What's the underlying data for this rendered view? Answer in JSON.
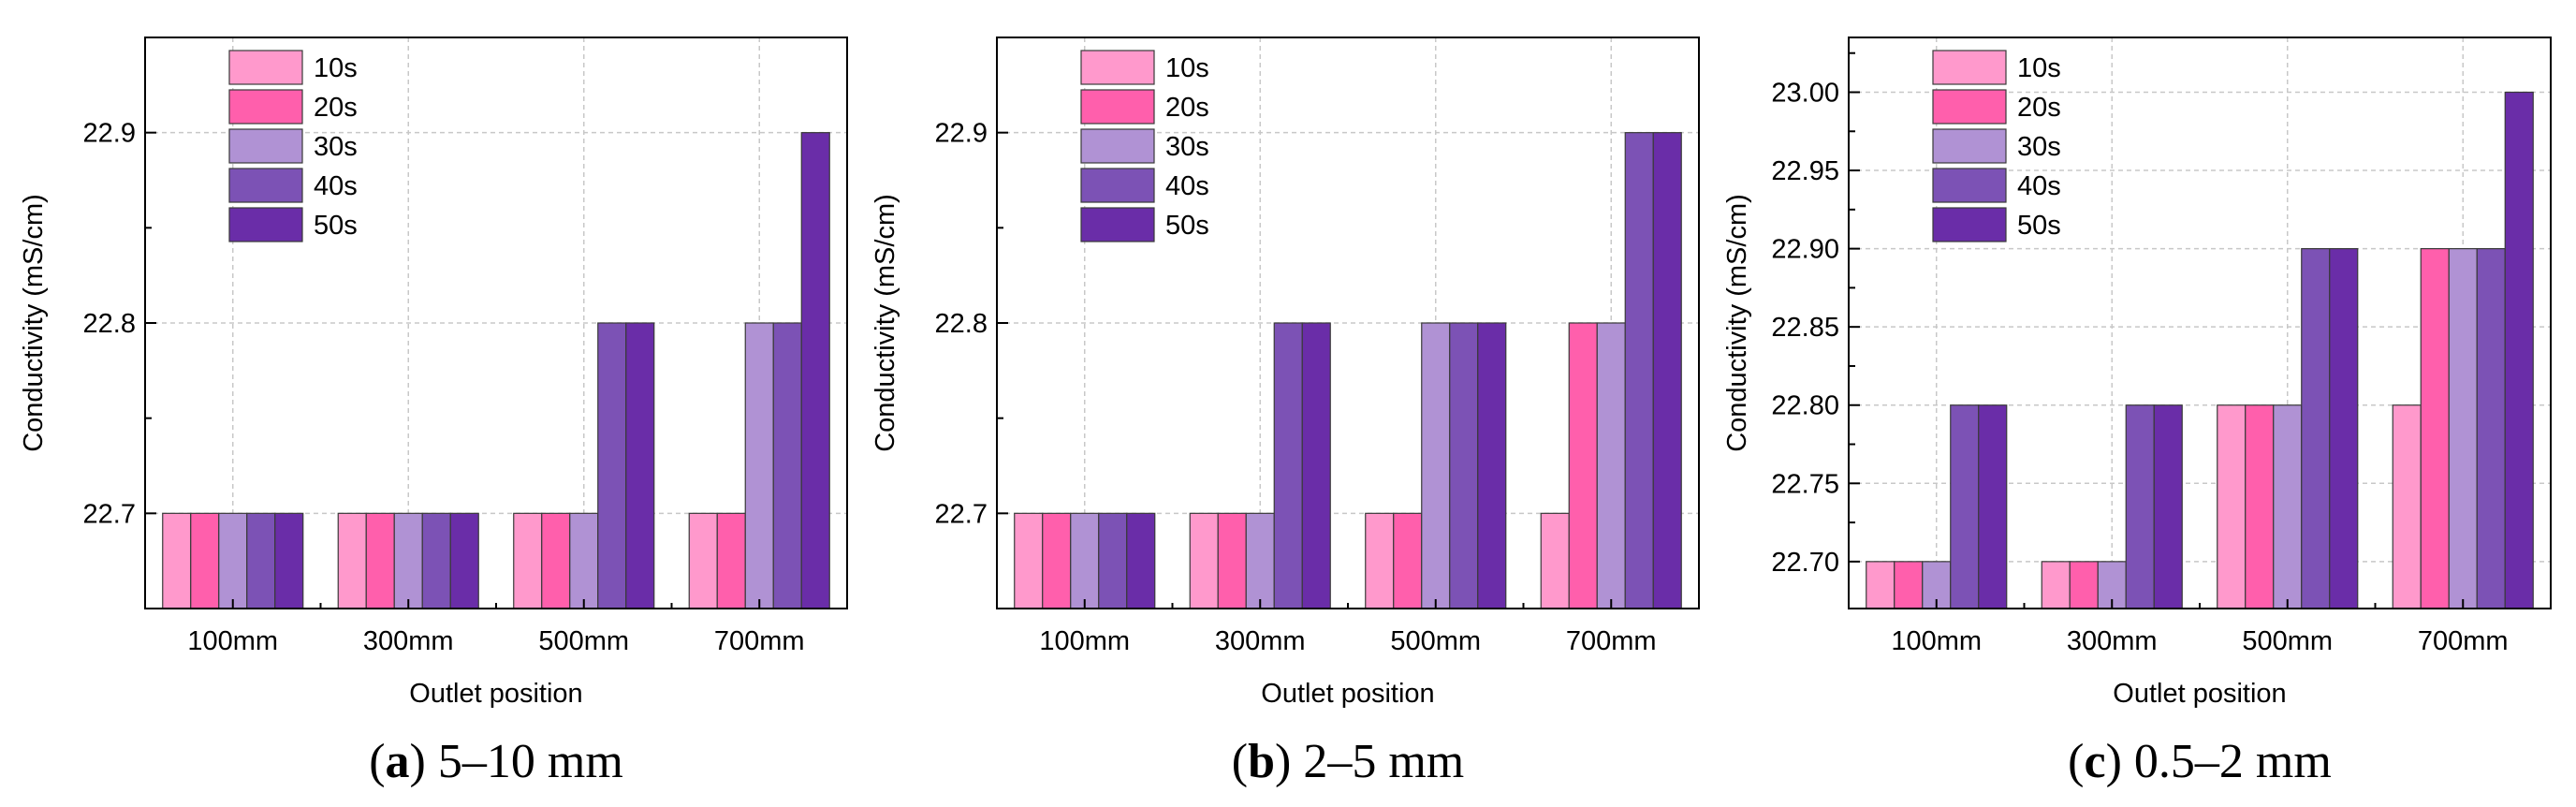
{
  "series_colors": [
    "#ff99cc",
    "#ff5fac",
    "#b092d4",
    "#7c52b5",
    "#6a2da8"
  ],
  "chart_data": [
    {
      "type": "bar",
      "panel": "a",
      "caption_letter": "a",
      "caption_text": " 5–10 mm",
      "caption_paren_open": "(",
      "caption_paren_close": ")",
      "categories": [
        "100mm",
        "300mm",
        "500mm",
        "700mm"
      ],
      "series": [
        {
          "name": "10s",
          "values": [
            22.7,
            22.7,
            22.7,
            22.7
          ]
        },
        {
          "name": "20s",
          "values": [
            22.7,
            22.7,
            22.7,
            22.7
          ]
        },
        {
          "name": "30s",
          "values": [
            22.7,
            22.7,
            22.7,
            22.8
          ]
        },
        {
          "name": "40s",
          "values": [
            22.7,
            22.7,
            22.8,
            22.8
          ]
        },
        {
          "name": "50s",
          "values": [
            22.7,
            22.7,
            22.8,
            22.9
          ]
        }
      ],
      "xlabel": "Outlet position",
      "ylabel": "Conductivity (mS/cm)",
      "ylim": [
        22.65,
        22.95
      ],
      "yticks": [
        22.7,
        22.8,
        22.9
      ],
      "ytick_labels": [
        "22.7",
        "22.8",
        "22.9"
      ],
      "yminor": [
        22.65,
        22.75,
        22.85,
        22.95
      ],
      "grid": true,
      "legend": "top-left"
    },
    {
      "type": "bar",
      "panel": "b",
      "caption_letter": "b",
      "caption_text": " 2–5 mm",
      "caption_paren_open": "(",
      "caption_paren_close": ")",
      "categories": [
        "100mm",
        "300mm",
        "500mm",
        "700mm"
      ],
      "series": [
        {
          "name": "10s",
          "values": [
            22.7,
            22.7,
            22.7,
            22.7
          ]
        },
        {
          "name": "20s",
          "values": [
            22.7,
            22.7,
            22.7,
            22.8
          ]
        },
        {
          "name": "30s",
          "values": [
            22.7,
            22.7,
            22.8,
            22.8
          ]
        },
        {
          "name": "40s",
          "values": [
            22.7,
            22.8,
            22.8,
            22.9
          ]
        },
        {
          "name": "50s",
          "values": [
            22.7,
            22.8,
            22.8,
            22.9
          ]
        }
      ],
      "xlabel": "Outlet position",
      "ylabel": "Conductivity (mS/cm)",
      "ylim": [
        22.65,
        22.95
      ],
      "yticks": [
        22.7,
        22.8,
        22.9
      ],
      "ytick_labels": [
        "22.7",
        "22.8",
        "22.9"
      ],
      "yminor": [
        22.65,
        22.75,
        22.85,
        22.95
      ],
      "grid": true,
      "legend": "top-left"
    },
    {
      "type": "bar",
      "panel": "c",
      "caption_letter": "c",
      "caption_text": " 0.5–2 mm",
      "caption_paren_open": "(",
      "caption_paren_close": ")",
      "categories": [
        "100mm",
        "300mm",
        "500mm",
        "700mm"
      ],
      "series": [
        {
          "name": "10s",
          "values": [
            22.7,
            22.7,
            22.8,
            22.8
          ]
        },
        {
          "name": "20s",
          "values": [
            22.7,
            22.7,
            22.8,
            22.9
          ]
        },
        {
          "name": "30s",
          "values": [
            22.7,
            22.7,
            22.8,
            22.9
          ]
        },
        {
          "name": "40s",
          "values": [
            22.8,
            22.8,
            22.9,
            22.9
          ]
        },
        {
          "name": "50s",
          "values": [
            22.8,
            22.8,
            22.9,
            23.0
          ]
        }
      ],
      "xlabel": "Outlet position",
      "ylabel": "Conductivity (mS/cm)",
      "ylim": [
        22.67,
        23.035
      ],
      "yticks": [
        22.7,
        22.75,
        22.8,
        22.85,
        22.9,
        22.95,
        23.0
      ],
      "ytick_labels": [
        "22.70",
        "22.75",
        "22.80",
        "22.85",
        "22.90",
        "22.95",
        "23.00"
      ],
      "yminor": [
        22.725,
        22.775,
        22.825,
        22.875,
        22.925,
        22.975,
        23.025
      ],
      "grid": true,
      "legend": "top-left"
    }
  ]
}
